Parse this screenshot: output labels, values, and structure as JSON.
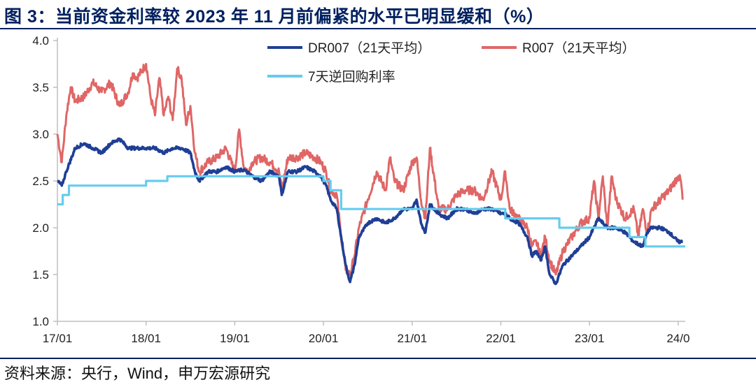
{
  "header": {
    "title": "图 3：当前资金利率较 2023 年 11 月前偏紧的水平已明显缓和（%）"
  },
  "footer": {
    "source": "资料来源：央行，Wind，申万宏源研究"
  },
  "colors": {
    "title": "#002060",
    "dr007": "#1f3f95",
    "r007": "#e06666",
    "reverse_repo": "#66ccee",
    "axis": "#bfbfbf"
  },
  "chart_data": {
    "type": "line",
    "title": "",
    "xlabel": "",
    "ylabel": "",
    "ylim": [
      1.0,
      4.0
    ],
    "yticks": [
      "1.0",
      "1.5",
      "2.0",
      "2.5",
      "3.0",
      "3.5",
      "4.0"
    ],
    "xlim": [
      2017.0,
      2024.08
    ],
    "xticks": [
      {
        "label": "17/01",
        "x": 2017.0
      },
      {
        "label": "18/01",
        "x": 2018.0
      },
      {
        "label": "19/01",
        "x": 2019.0
      },
      {
        "label": "20/01",
        "x": 2020.0
      },
      {
        "label": "21/01",
        "x": 2021.0
      },
      {
        "label": "22/01",
        "x": 2022.0
      },
      {
        "label": "23/01",
        "x": 2023.0
      },
      {
        "label": "24/0",
        "x": 2024.0
      }
    ],
    "series": [
      {
        "name": "DR007（21天平均）",
        "style": "line",
        "x": [
          2017.0,
          2017.05,
          2017.1,
          2017.2,
          2017.3,
          2017.4,
          2017.5,
          2017.6,
          2017.7,
          2017.8,
          2017.9,
          2018.0,
          2018.1,
          2018.2,
          2018.3,
          2018.4,
          2018.5,
          2018.55,
          2018.6,
          2018.7,
          2018.8,
          2018.9,
          2019.0,
          2019.1,
          2019.2,
          2019.3,
          2019.4,
          2019.5,
          2019.53,
          2019.6,
          2019.7,
          2019.8,
          2019.9,
          2019.97,
          2020.03,
          2020.08,
          2020.15,
          2020.2,
          2020.25,
          2020.3,
          2020.35,
          2020.4,
          2020.5,
          2020.6,
          2020.7,
          2020.8,
          2020.9,
          2021.0,
          2021.05,
          2021.1,
          2021.15,
          2021.2,
          2021.3,
          2021.4,
          2021.5,
          2021.6,
          2021.7,
          2021.8,
          2021.9,
          2022.0,
          2022.05,
          2022.1,
          2022.2,
          2022.3,
          2022.35,
          2022.4,
          2022.45,
          2022.5,
          2022.55,
          2022.62,
          2022.7,
          2022.8,
          2022.9,
          2023.0,
          2023.05,
          2023.1,
          2023.2,
          2023.3,
          2023.4,
          2023.5,
          2023.6,
          2023.65,
          2023.7,
          2023.8,
          2023.9,
          2024.0,
          2024.05
        ],
        "values": [
          2.5,
          2.45,
          2.6,
          2.85,
          2.9,
          2.85,
          2.8,
          2.9,
          2.95,
          2.85,
          2.85,
          2.85,
          2.85,
          2.8,
          2.85,
          2.85,
          2.8,
          2.6,
          2.5,
          2.6,
          2.6,
          2.65,
          2.6,
          2.62,
          2.55,
          2.5,
          2.6,
          2.55,
          2.35,
          2.6,
          2.6,
          2.65,
          2.6,
          2.55,
          2.45,
          2.3,
          2.2,
          1.9,
          1.6,
          1.42,
          1.6,
          1.9,
          2.05,
          2.1,
          2.05,
          2.1,
          2.2,
          2.2,
          2.3,
          2.05,
          1.95,
          2.25,
          2.15,
          2.1,
          2.2,
          2.2,
          2.15,
          2.2,
          2.2,
          2.15,
          2.15,
          2.1,
          2.05,
          1.9,
          1.7,
          1.75,
          1.65,
          1.8,
          1.5,
          1.4,
          1.6,
          1.7,
          1.8,
          1.9,
          2.0,
          2.1,
          2.0,
          2.0,
          1.95,
          1.85,
          1.8,
          1.95,
          2.0,
          2.0,
          1.95,
          1.85,
          1.85
        ]
      },
      {
        "name": "R007（21天平均）",
        "style": "line",
        "x": [
          2017.0,
          2017.05,
          2017.1,
          2017.15,
          2017.2,
          2017.3,
          2017.4,
          2017.5,
          2017.6,
          2017.7,
          2017.8,
          2017.85,
          2017.9,
          2018.0,
          2018.05,
          2018.1,
          2018.15,
          2018.2,
          2018.25,
          2018.3,
          2018.35,
          2018.4,
          2018.45,
          2018.5,
          2018.55,
          2018.6,
          2018.7,
          2018.8,
          2018.9,
          2019.0,
          2019.05,
          2019.1,
          2019.15,
          2019.2,
          2019.3,
          2019.4,
          2019.5,
          2019.53,
          2019.6,
          2019.7,
          2019.8,
          2019.9,
          2019.97,
          2020.03,
          2020.08,
          2020.15,
          2020.2,
          2020.25,
          2020.3,
          2020.35,
          2020.4,
          2020.5,
          2020.6,
          2020.7,
          2020.75,
          2020.8,
          2020.9,
          2021.0,
          2021.05,
          2021.1,
          2021.15,
          2021.2,
          2021.3,
          2021.4,
          2021.5,
          2021.6,
          2021.7,
          2021.8,
          2021.9,
          2022.0,
          2022.05,
          2022.1,
          2022.2,
          2022.3,
          2022.35,
          2022.4,
          2022.45,
          2022.5,
          2022.55,
          2022.62,
          2022.7,
          2022.8,
          2022.9,
          2023.0,
          2023.05,
          2023.1,
          2023.15,
          2023.2,
          2023.25,
          2023.3,
          2023.4,
          2023.5,
          2023.55,
          2023.6,
          2023.65,
          2023.7,
          2023.8,
          2023.9,
          2024.0,
          2024.03,
          2024.05
        ],
        "values": [
          3.0,
          2.7,
          3.2,
          3.5,
          3.35,
          3.4,
          3.55,
          3.45,
          3.55,
          3.3,
          3.45,
          3.65,
          3.6,
          3.75,
          3.4,
          3.2,
          3.6,
          3.2,
          3.4,
          3.15,
          3.7,
          3.6,
          3.1,
          3.3,
          2.8,
          2.6,
          2.7,
          2.75,
          2.85,
          2.6,
          3.05,
          2.65,
          2.6,
          2.7,
          2.75,
          2.7,
          2.6,
          2.4,
          2.75,
          2.75,
          2.8,
          2.75,
          2.7,
          2.6,
          2.4,
          2.35,
          1.9,
          1.55,
          1.5,
          1.7,
          2.0,
          2.3,
          2.6,
          2.4,
          2.75,
          2.5,
          2.4,
          2.7,
          2.75,
          2.3,
          2.1,
          2.85,
          2.2,
          2.2,
          2.35,
          2.4,
          2.4,
          2.3,
          2.6,
          2.3,
          2.6,
          2.2,
          2.1,
          2.0,
          1.8,
          1.85,
          1.7,
          1.9,
          1.65,
          1.5,
          1.75,
          1.9,
          2.05,
          2.1,
          2.5,
          2.1,
          2.55,
          2.0,
          2.55,
          2.3,
          2.1,
          2.2,
          1.9,
          2.2,
          1.95,
          2.2,
          2.3,
          2.4,
          2.55,
          2.5,
          2.3
        ]
      },
      {
        "name": "7天逆回购利率",
        "style": "step",
        "x": [
          2017.0,
          2017.06,
          2017.13,
          2017.22,
          2018.0,
          2018.24,
          2019.0,
          2019.6,
          2020.0,
          2020.08,
          2020.2,
          2021.0,
          2022.0,
          2022.05,
          2022.66,
          2023.0,
          2023.45,
          2023.63,
          2024.08
        ],
        "values": [
          2.25,
          2.35,
          2.45,
          2.45,
          2.5,
          2.55,
          2.55,
          2.55,
          2.5,
          2.4,
          2.2,
          2.2,
          2.2,
          2.1,
          2.0,
          2.0,
          1.9,
          1.8,
          1.8
        ]
      }
    ],
    "legend": "top-right"
  }
}
